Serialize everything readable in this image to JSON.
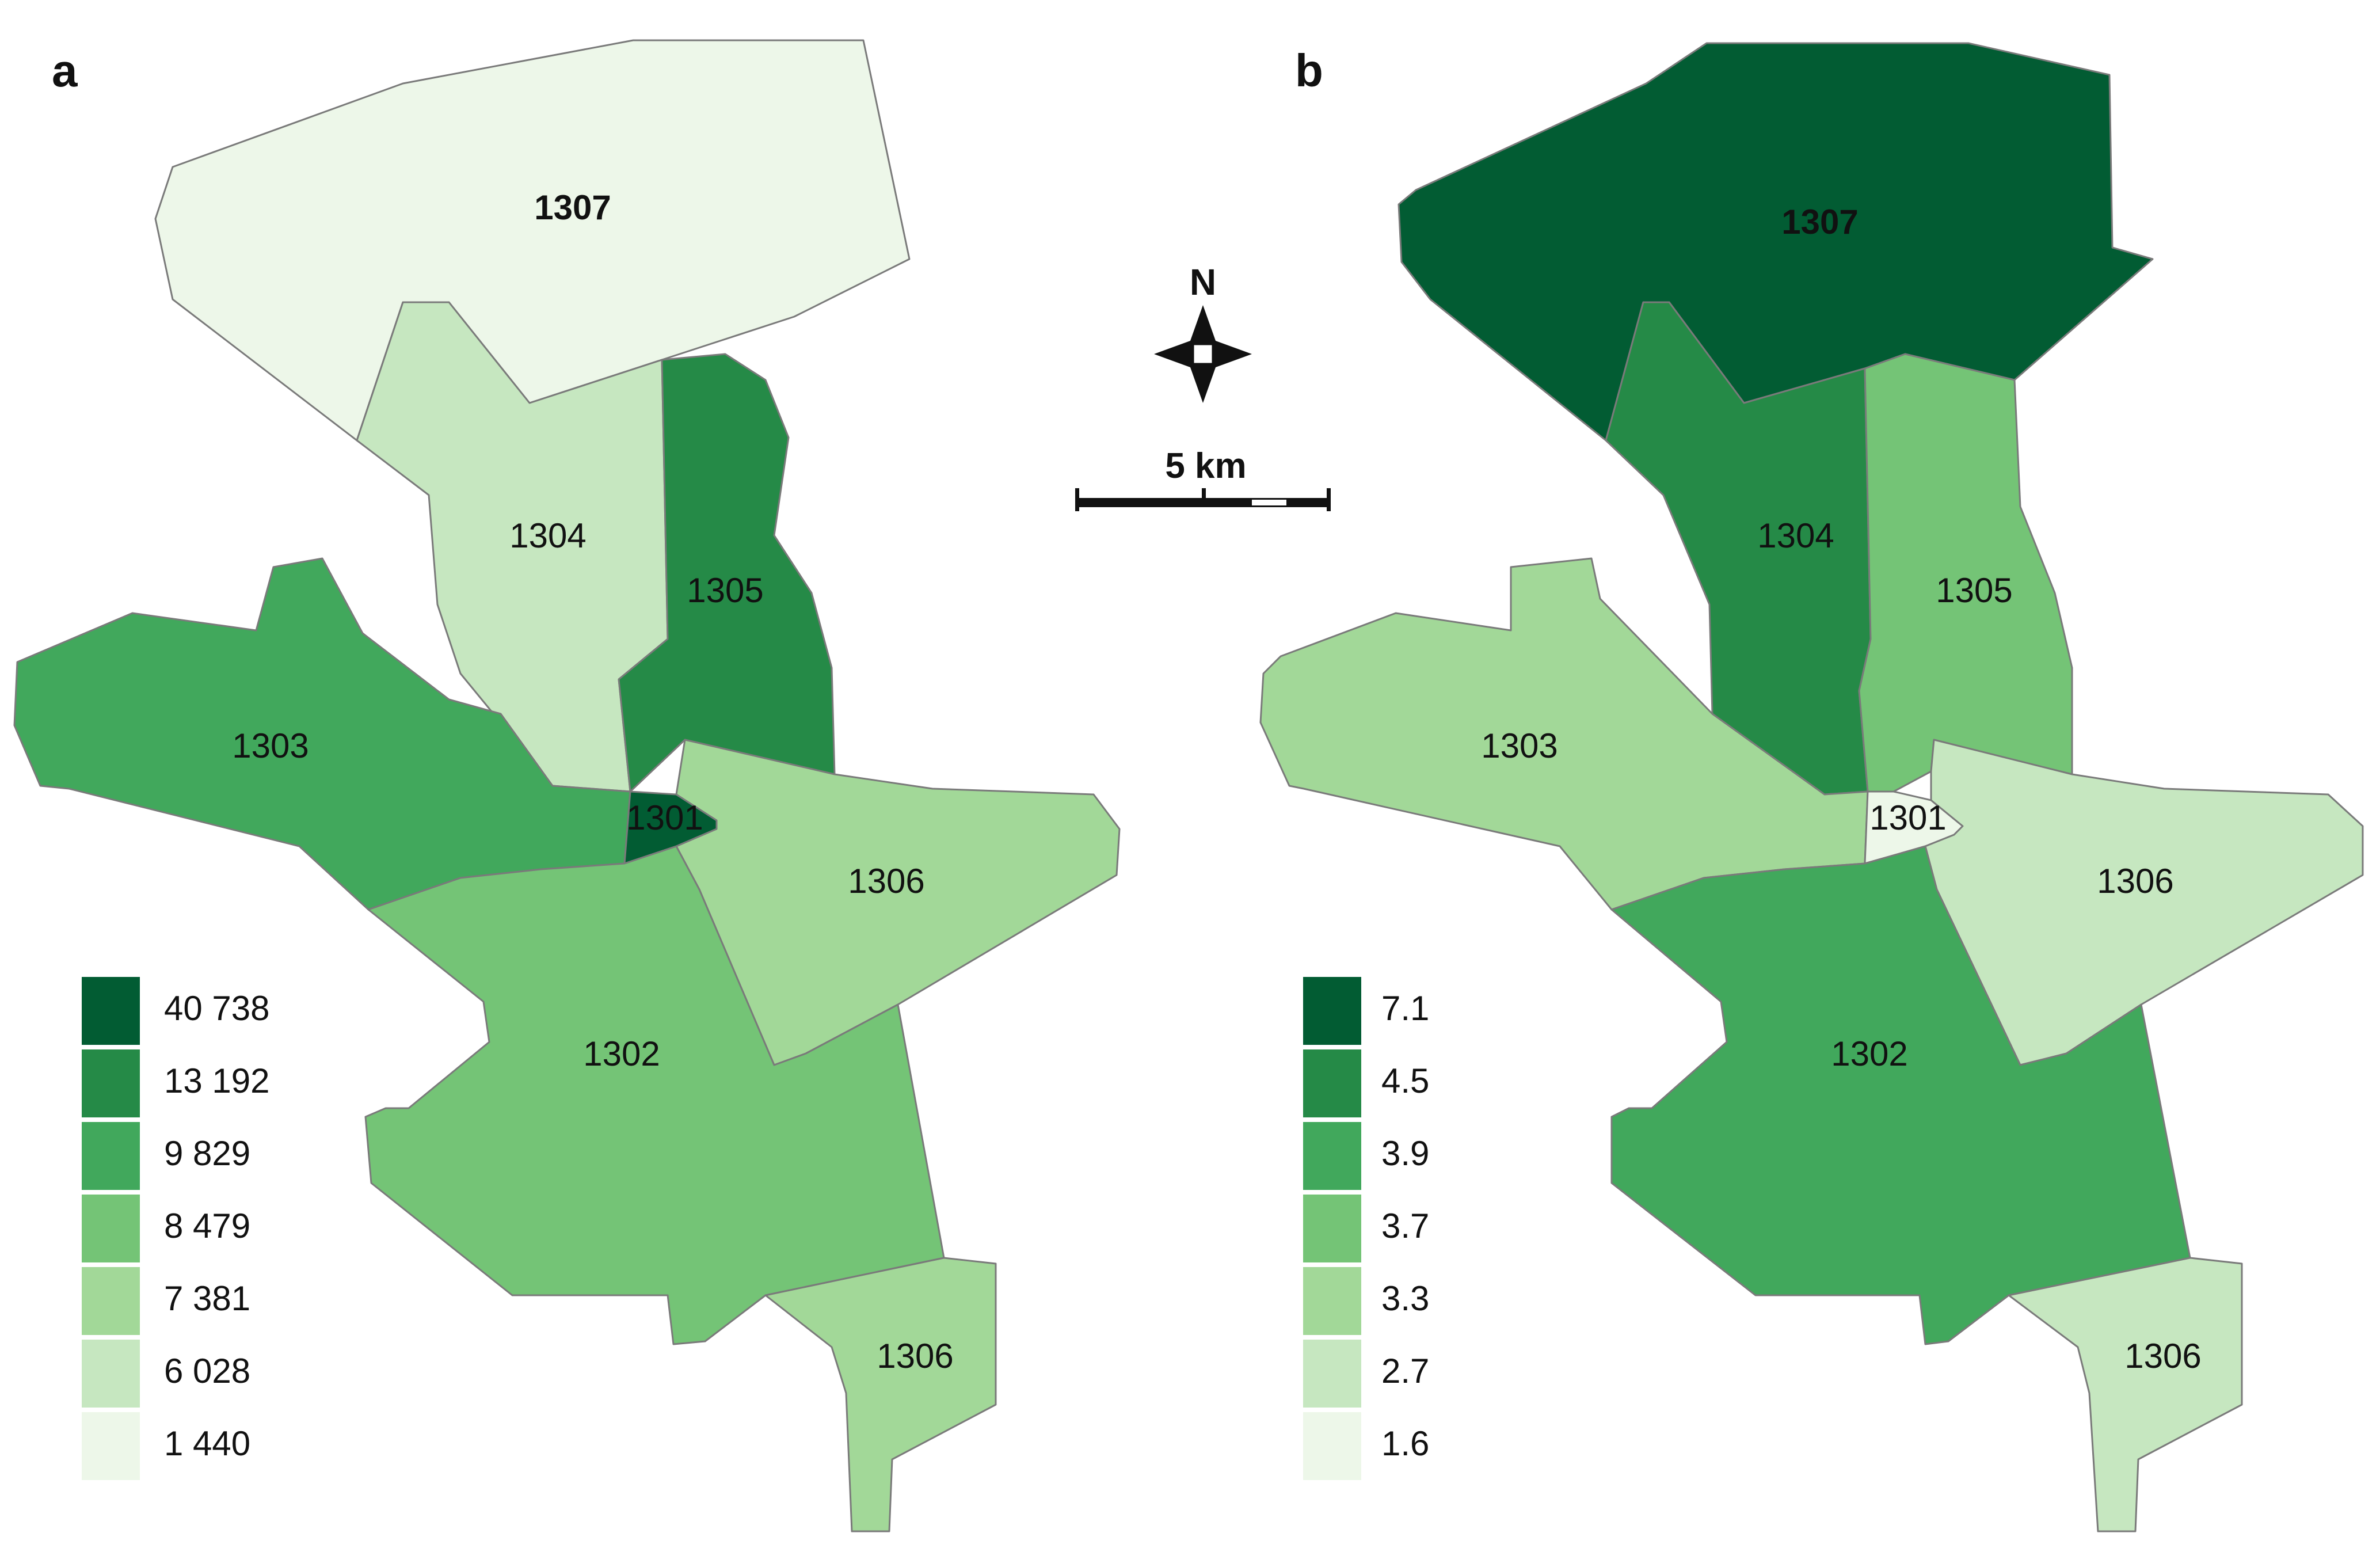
{
  "panels": [
    {
      "letter": "a",
      "regions": [
        {
          "id": "1307",
          "label": "1307",
          "class": 0
        },
        {
          "id": "1304",
          "label": "1304",
          "class": 1
        },
        {
          "id": "1305",
          "label": "1305",
          "class": 5
        },
        {
          "id": "1303",
          "label": "1303",
          "class": 4
        },
        {
          "id": "1301",
          "label": "1301",
          "class": 6
        },
        {
          "id": "1306",
          "label": "1306",
          "class": 2
        },
        {
          "id": "1302",
          "label": "1302",
          "class": 3
        },
        {
          "id": "1306b",
          "label": "1306",
          "class": 2
        }
      ],
      "legend": {
        "labels": [
          "40 738",
          "13 192",
          "9 829",
          "8 479",
          "7 381",
          "6 028",
          "1 440"
        ]
      }
    },
    {
      "letter": "b",
      "regions": [
        {
          "id": "1307",
          "label": "1307",
          "class": 6
        },
        {
          "id": "1304",
          "label": "1304",
          "class": 5
        },
        {
          "id": "1305",
          "label": "1305",
          "class": 3
        },
        {
          "id": "1303",
          "label": "1303",
          "class": 2
        },
        {
          "id": "1301",
          "label": "1301",
          "class": 0
        },
        {
          "id": "1306",
          "label": "1306",
          "class": 1
        },
        {
          "id": "1302",
          "label": "1302",
          "class": 4
        },
        {
          "id": "1306b",
          "label": "1306",
          "class": 1
        }
      ],
      "legend": {
        "labels": [
          "7.1",
          "4.5",
          "3.9",
          "3.7",
          "3.3",
          "2.7",
          "1.6"
        ]
      }
    }
  ],
  "palette": [
    "#edf7e9",
    "#c6e7c0",
    "#a2d898",
    "#74c476",
    "#41a85c",
    "#258a47",
    "#025c33"
  ],
  "compass": {
    "label": "N",
    "icon": "north-arrow-icon"
  },
  "scale_bar": {
    "label": "5 km"
  }
}
